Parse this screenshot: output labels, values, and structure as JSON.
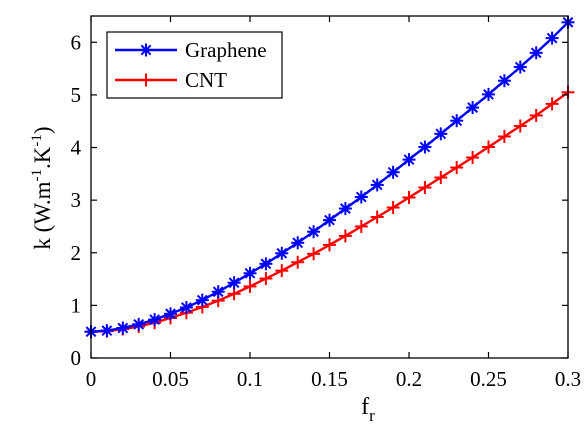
{
  "chart_data": {
    "type": "line",
    "xlabel_main": "f",
    "xlabel_sub": "r",
    "ylabel": "k (W.m-1.K-1)",
    "ylabel_parts": {
      "pre": "k (W.m",
      "exp1": "-1",
      "mid": ".K",
      "exp2": "-1",
      "post": ")"
    },
    "xlim": [
      0,
      0.3
    ],
    "ylim": [
      0,
      6.5
    ],
    "xticks": [
      "0",
      "0.05",
      "0.1",
      "0.15",
      "0.2",
      "0.25",
      "0.3"
    ],
    "xtick_values": [
      0,
      0.05,
      0.1,
      0.15,
      0.2,
      0.25,
      0.3
    ],
    "yticks": [
      "0",
      "1",
      "2",
      "3",
      "4",
      "5",
      "6"
    ],
    "ytick_values": [
      0,
      1,
      2,
      3,
      4,
      5,
      6
    ],
    "grid": false,
    "legend_placement": "top-left",
    "x": [
      0,
      0.01,
      0.02,
      0.03,
      0.04,
      0.05,
      0.06,
      0.07,
      0.08,
      0.09,
      0.1,
      0.11,
      0.12,
      0.13,
      0.14,
      0.15,
      0.16,
      0.17,
      0.18,
      0.19,
      0.2,
      0.21,
      0.22,
      0.23,
      0.24,
      0.25,
      0.26,
      0.27,
      0.28,
      0.29,
      0.3
    ],
    "series": [
      {
        "name": "Graphene",
        "color": "#0000ff",
        "marker": "asterisk",
        "values": [
          0.5,
          0.52,
          0.57,
          0.64,
          0.73,
          0.84,
          0.96,
          1.1,
          1.26,
          1.43,
          1.61,
          1.79,
          1.99,
          2.19,
          2.4,
          2.62,
          2.84,
          3.06,
          3.29,
          3.53,
          3.77,
          4.01,
          4.26,
          4.51,
          4.76,
          5.01,
          5.27,
          5.53,
          5.8,
          6.08,
          6.38
        ]
      },
      {
        "name": "CNT",
        "color": "#ff0000",
        "marker": "plus",
        "values": [
          0.5,
          0.51,
          0.55,
          0.6,
          0.67,
          0.76,
          0.86,
          0.97,
          1.09,
          1.22,
          1.36,
          1.51,
          1.66,
          1.82,
          1.98,
          2.15,
          2.32,
          2.5,
          2.68,
          2.86,
          3.05,
          3.24,
          3.43,
          3.62,
          3.81,
          4.01,
          4.21,
          4.41,
          4.61,
          4.83,
          5.05
        ]
      }
    ]
  }
}
